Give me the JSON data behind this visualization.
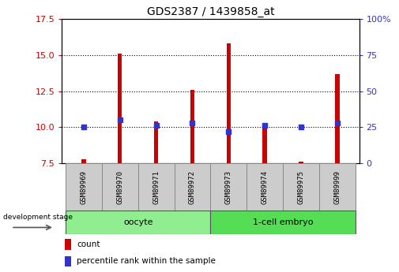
{
  "title": "GDS2387 / 1439858_at",
  "samples": [
    "GSM89969",
    "GSM89970",
    "GSM89971",
    "GSM89972",
    "GSM89973",
    "GSM89974",
    "GSM89975",
    "GSM89999"
  ],
  "counts": [
    7.8,
    15.1,
    10.4,
    12.6,
    15.8,
    10.0,
    7.6,
    13.7
  ],
  "percentiles": [
    25,
    30,
    26,
    28,
    22,
    26,
    25,
    28
  ],
  "bar_bottom": 7.5,
  "ylim_left": [
    7.5,
    17.5
  ],
  "ylim_right": [
    0,
    100
  ],
  "yticks_left": [
    7.5,
    10.0,
    12.5,
    15.0,
    17.5
  ],
  "yticks_right": [
    0,
    25,
    50,
    75,
    100
  ],
  "ytick_labels_right": [
    "0",
    "25",
    "50",
    "75",
    "100%"
  ],
  "groups": [
    {
      "label": "oocyte",
      "indices": [
        0,
        1,
        2,
        3
      ],
      "color": "#90EE90"
    },
    {
      "label": "1-cell embryo",
      "indices": [
        4,
        5,
        6,
        7
      ],
      "color": "#55DD55"
    }
  ],
  "bar_color": "#CC0000",
  "dot_color": "#3333CC",
  "grid_color": "#000000",
  "bg_color": "#FFFFFF",
  "tick_label_color_left": "#CC0000",
  "tick_label_color_right": "#3333CC",
  "dev_stage_label": "development stage",
  "legend_count_label": "count",
  "legend_percentile_label": "percentile rank within the sample",
  "bar_width": 0.12
}
